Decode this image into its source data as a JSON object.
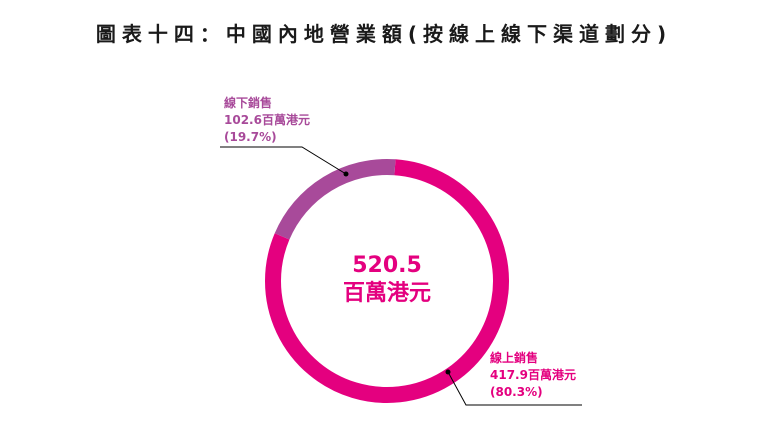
{
  "title": "圖表十四：中國內地營業額(按線上線下渠道劃分)",
  "colors": {
    "online": "#e4007f",
    "offline": "#a84a9a",
    "leader": "#000000"
  },
  "chart_data": {
    "type": "pie",
    "donut": true,
    "unit": "百萬港元",
    "total": {
      "value": "520.5",
      "unit": "百萬港元"
    },
    "slices": [
      {
        "name": "線上銷售",
        "value": 417.9,
        "value_label": "417.9百萬港元",
        "percent_label": "(80.3%)",
        "color": "#e4007f"
      },
      {
        "name": "線下銷售",
        "value": 102.6,
        "value_label": "102.6百萬港元",
        "percent_label": "(19.7%)",
        "color": "#a84a9a"
      }
    ]
  }
}
